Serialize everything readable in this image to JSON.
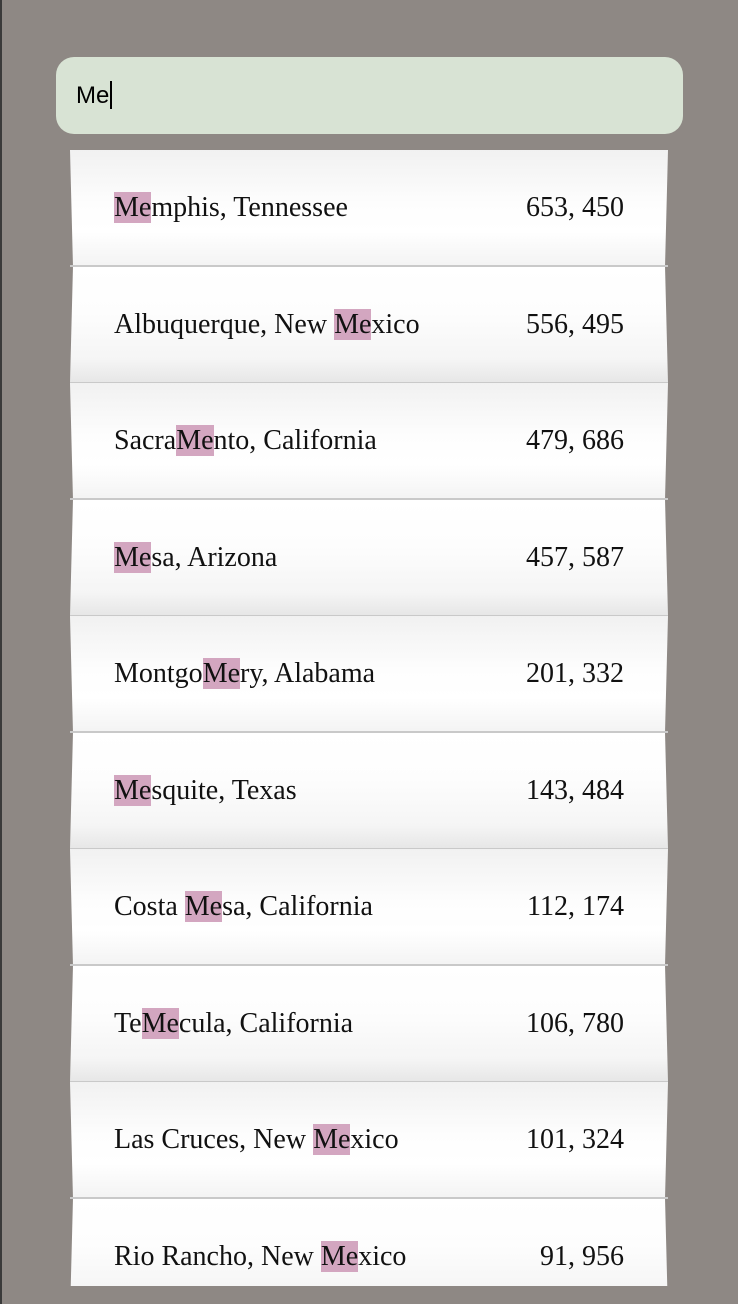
{
  "search": {
    "value": "Me"
  },
  "colors": {
    "background": "#8e8884",
    "search_bg": "#d8e3d4",
    "highlight": "#d3a6c0"
  },
  "results": [
    {
      "pre": "",
      "match": "Me",
      "post": "mphis, Tennessee",
      "population": "653, 450"
    },
    {
      "pre": "Albuquerque, New ",
      "match": "Me",
      "post": "xico",
      "population": "556, 495"
    },
    {
      "pre": "Sacra",
      "match": "Me",
      "post": "nto, California",
      "population": "479, 686"
    },
    {
      "pre": "",
      "match": "Me",
      "post": "sa, Arizona",
      "population": "457, 587"
    },
    {
      "pre": "Montgo",
      "match": "Me",
      "post": "ry, Alabama",
      "population": "201, 332"
    },
    {
      "pre": "",
      "match": "Me",
      "post": "squite, Texas",
      "population": "143, 484"
    },
    {
      "pre": "Costa ",
      "match": "Me",
      "post": "sa, California",
      "population": "112, 174"
    },
    {
      "pre": "Te",
      "match": "Me",
      "post": "cula, California",
      "population": "106, 780"
    },
    {
      "pre": "Las Cruces, New ",
      "match": "Me",
      "post": "xico",
      "population": "101, 324"
    },
    {
      "pre": "Rio Rancho, New ",
      "match": "Me",
      "post": "xico",
      "population": "91, 956"
    }
  ]
}
